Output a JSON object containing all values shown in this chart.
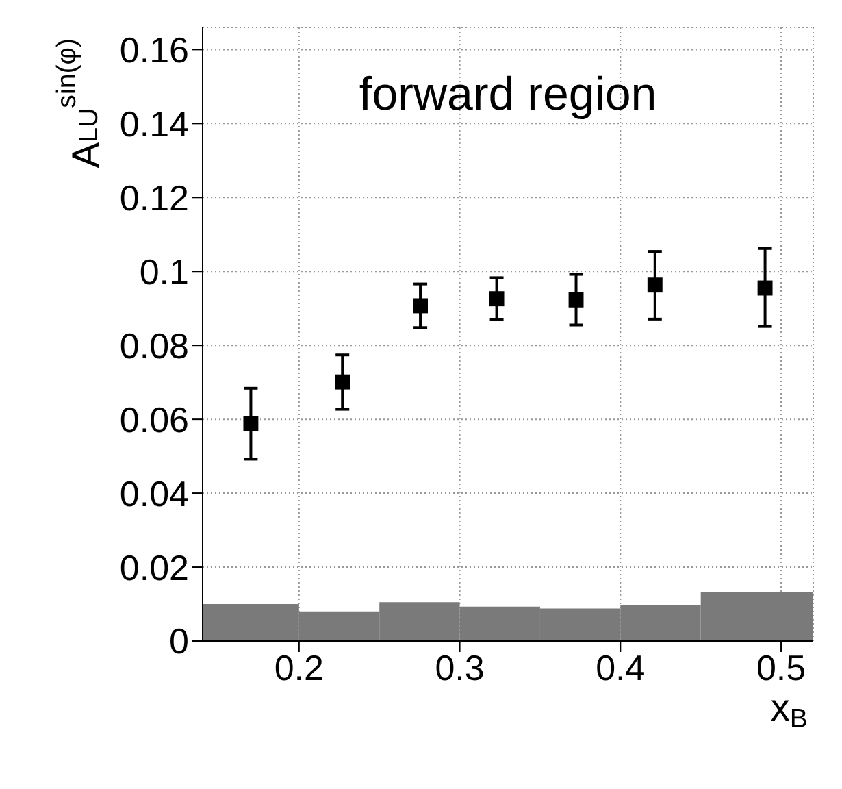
{
  "chart_data": {
    "type": "scatter",
    "xlabel": "x$_{B}$",
    "ylabel": "A$_{LU}$$^{sin(φ)}$",
    "annotations": [
      "forward region"
    ],
    "x": [
      0.17,
      0.227,
      0.2755,
      0.323,
      0.3724,
      0.4215,
      0.49
    ],
    "series": [
      {
        "color": "#000000",
        "values": [
          0.0589,
          0.0701,
          0.0907,
          0.0926,
          0.0923,
          0.0963,
          0.0955
        ],
        "errors": [
          [
            0.0492,
            0.0684
          ],
          [
            0.0627,
            0.0774
          ],
          [
            0.0848,
            0.0966
          ],
          [
            0.0869,
            0.0983
          ],
          [
            0.0855,
            0.0992
          ],
          [
            0.0871,
            0.1054
          ],
          [
            0.0851,
            0.1062
          ]
        ]
      },
      {
        "type": "histogram",
        "color": "#7a7a7a",
        "bins": [
          0.14,
          0.2,
          0.25,
          0.3,
          0.35,
          0.4,
          0.45,
          0.52
        ],
        "values": [
          0.01,
          0.008,
          0.0105,
          0.0093,
          0.0088,
          0.0097,
          0.0133
        ]
      }
    ],
    "marker": "square",
    "grid": true,
    "xlim": [
      0.14,
      0.52
    ],
    "xticks": [
      0.2,
      0.3,
      0.4,
      0.5
    ],
    "ylim": [
      0,
      0.166
    ],
    "yticks": [
      0,
      0.02,
      0.04,
      0.06,
      0.08,
      0.1,
      0.12,
      0.14,
      0.16
    ]
  }
}
